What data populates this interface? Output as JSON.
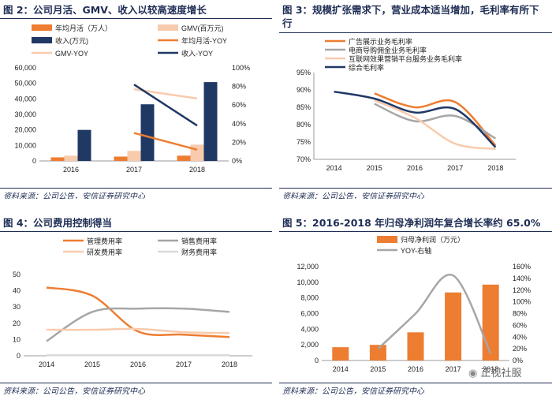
{
  "chart_data": [
    {
      "type": "bar",
      "title": "图 2：公司月活、GMV、收入以较高速度增长",
      "source": "资料来源：公司公告，安信证券研究中心",
      "categories": [
        "2016",
        "2017",
        "2018"
      ],
      "ylim": [
        0,
        60000
      ],
      "yticks": [
        "0",
        "10,000",
        "20,000",
        "30,000",
        "40,000",
        "50,000",
        "60,000"
      ],
      "y2lim": [
        0,
        100
      ],
      "y2ticks": [
        "0%",
        "20%",
        "40%",
        "60%",
        "80%",
        "100%"
      ],
      "series": [
        {
          "name": "年均月活（万人）",
          "kind": "bar",
          "color": "#ED7D31",
          "values": [
            2300,
            2800,
            3400
          ]
        },
        {
          "name": "GMV(百万元)",
          "kind": "bar",
          "color": "#F8CBAD",
          "values": [
            3400,
            6500,
            10500
          ]
        },
        {
          "name": "收入(万元)",
          "kind": "bar",
          "color": "#203864",
          "values": [
            20000,
            36500,
            50800
          ]
        },
        {
          "name": "年均月活-YOY",
          "kind": "line",
          "axis": "right",
          "color": "#ED7D31",
          "values": [
            null,
            30,
            12
          ]
        },
        {
          "name": "GMV-YOY",
          "kind": "line",
          "axis": "right",
          "color": "#F8CBAD",
          "values": [
            null,
            77,
            67
          ]
        },
        {
          "name": "收入-YOY",
          "kind": "line",
          "axis": "right",
          "color": "#203864",
          "values": [
            null,
            82,
            38
          ]
        }
      ]
    },
    {
      "type": "line",
      "title": "图 3：规模扩张需求下，营业成本适当增加，毛利率有所下行",
      "source": "资料来源：公司公告，安信证券研究中心",
      "categories": [
        "2014",
        "2015",
        "2016",
        "2017",
        "2018"
      ],
      "ylim": [
        70,
        95
      ],
      "yticks": [
        "70%",
        "75%",
        "80%",
        "85%",
        "90%",
        "95%"
      ],
      "series": [
        {
          "name": "广告展示业务毛利率",
          "color": "#ED7D31",
          "values": [
            null,
            89,
            85,
            86.5,
            74
          ]
        },
        {
          "name": "电商导购佣金业务毛利率",
          "color": "#A6A6A6",
          "values": [
            null,
            86,
            81,
            82.5,
            76
          ]
        },
        {
          "name": "互联网效果营销平台服务业务毛利率",
          "color": "#F8CBAD",
          "values": [
            null,
            87,
            82,
            74.5,
            73
          ]
        },
        {
          "name": "综合毛利率",
          "color": "#203864",
          "values": [
            89.5,
            87.5,
            83.5,
            84.5,
            73.5
          ]
        }
      ]
    },
    {
      "type": "line",
      "title": "图 4：公司费用控制得当",
      "source": "资料来源：公司公告，安信证券研究中心",
      "categories": [
        "2014",
        "2015",
        "2016",
        "2017",
        "2018"
      ],
      "ylim": [
        0,
        50
      ],
      "yticks": [
        "0",
        "10",
        "20",
        "30",
        "40",
        "50"
      ],
      "series": [
        {
          "name": "管理费用率",
          "color": "#ED7D31",
          "values": [
            42,
            37,
            15,
            13,
            11.5
          ]
        },
        {
          "name": "销售费用率",
          "color": "#A6A6A6",
          "values": [
            9,
            27,
            29,
            29,
            27
          ]
        },
        {
          "name": "研发费用率",
          "color": "#F8CBAD",
          "values": [
            16,
            16,
            16.5,
            14.5,
            14
          ]
        },
        {
          "name": "财务费用率",
          "color": "#D9D9D9",
          "values": [
            0.3,
            0.3,
            0.3,
            0.3,
            0.3
          ]
        }
      ]
    },
    {
      "type": "bar",
      "title": "图 5：2016-2018 年归母净利润年复合增长率约 65.0%",
      "source": "资料来源：公司公告，安信证券研究中心",
      "categories": [
        "2014",
        "2015",
        "2016",
        "2017",
        "2018"
      ],
      "ylim": [
        0,
        12000
      ],
      "yticks": [
        "0",
        "2,000",
        "4,000",
        "6,000",
        "8,000",
        "10,000",
        "12,000"
      ],
      "y2lim": [
        0,
        160
      ],
      "y2ticks": [
        "0%",
        "20%",
        "40%",
        "60%",
        "80%",
        "100%",
        "120%",
        "140%",
        "160%"
      ],
      "series": [
        {
          "name": "归母净利润（万元）",
          "kind": "bar",
          "color": "#ED7D31",
          "values": [
            1700,
            2000,
            3600,
            8700,
            9700
          ]
        },
        {
          "name": "YOY-右轴",
          "kind": "line",
          "axis": "right",
          "color": "#A6A6A6",
          "values": [
            null,
            20,
            80,
            145,
            12
          ]
        }
      ]
    }
  ],
  "watermark": "正视社服"
}
